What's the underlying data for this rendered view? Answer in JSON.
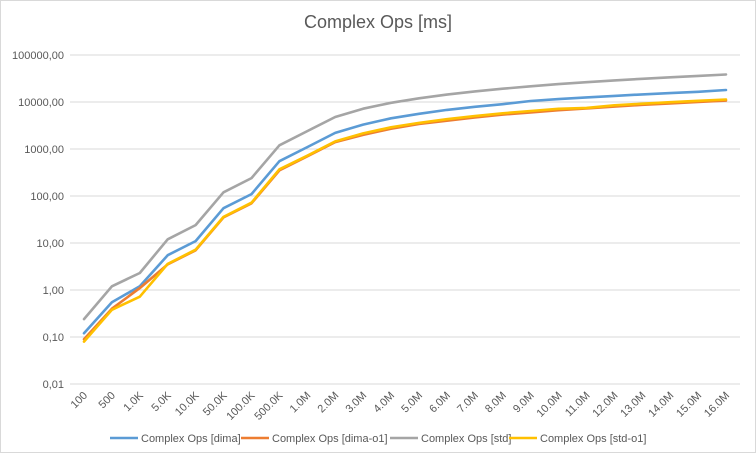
{
  "chart_data": {
    "type": "line",
    "title": "Complex Ops [ms]",
    "yscale": "log",
    "ylim": [
      0.01,
      100000
    ],
    "y_tick_values": [
      0.01,
      0.1,
      1,
      10,
      100,
      1000,
      10000,
      100000
    ],
    "y_tick_labels": [
      "0,01",
      "0,10",
      "1,00",
      "10,00",
      "100,00",
      "1000,00",
      "10000,00",
      "100000,00"
    ],
    "grid": true,
    "legend_position": "bottom",
    "categories": [
      "100",
      "500",
      "1.0K",
      "5.0K",
      "10.0K",
      "50.0K",
      "100.0K",
      "500.0K",
      "1.0M",
      "2.0M",
      "3.0M",
      "4.0M",
      "5.0M",
      "6.0M",
      "7.0M",
      "8.0M",
      "9.0M",
      "10.0M",
      "11.0M",
      "12.0M",
      "13.0M",
      "14.0M",
      "15.0M",
      "16.0M"
    ],
    "series": [
      {
        "name": "Complex Ops [dima]",
        "color": "#5b9bd5",
        "values": [
          0.12,
          0.55,
          1.2,
          5.5,
          11,
          55,
          110,
          550,
          1100,
          2200,
          3300,
          4500,
          5600,
          6800,
          7900,
          9000,
          10500,
          11500,
          12500,
          13500,
          14500,
          15500,
          16500,
          18000
        ]
      },
      {
        "name": "Complex Ops [dima-o1]",
        "color": "#ed7d31",
        "values": [
          0.09,
          0.4,
          1.1,
          3.5,
          7,
          35,
          70,
          350,
          700,
          1400,
          2000,
          2700,
          3400,
          4000,
          4700,
          5400,
          6000,
          6700,
          7300,
          8000,
          8700,
          9300,
          10000,
          10700
        ]
      },
      {
        "name": "Complex Ops [std]",
        "color": "#a5a5a5",
        "values": [
          0.24,
          1.2,
          2.3,
          12,
          24,
          120,
          240,
          1200,
          2400,
          4800,
          7200,
          9600,
          12000,
          14400,
          16800,
          19200,
          21600,
          24000,
          26400,
          28800,
          31200,
          33600,
          36000,
          38400
        ]
      },
      {
        "name": "Complex Ops [std-o1]",
        "color": "#ffc000",
        "values": [
          0.08,
          0.38,
          0.72,
          3.6,
          7.2,
          36,
          72,
          370,
          720,
          1450,
          2150,
          2900,
          3600,
          4300,
          5000,
          5750,
          6450,
          7150,
          7500,
          8500,
          9200,
          9900,
          10600,
          11300
        ]
      }
    ]
  }
}
